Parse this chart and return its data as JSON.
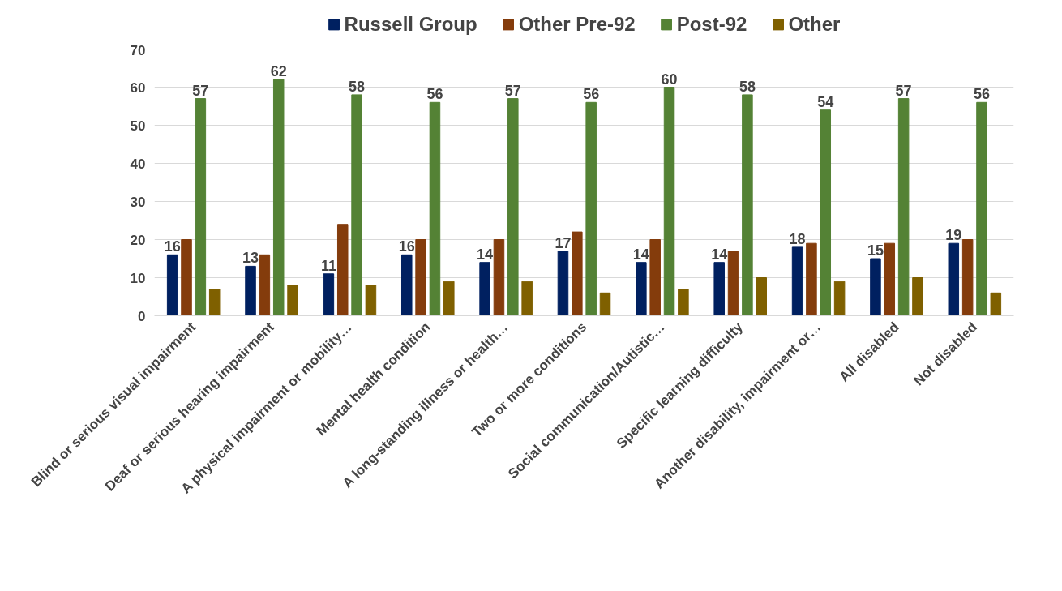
{
  "chart_data": {
    "type": "bar",
    "categories": [
      "Blind or serious visual impairment",
      "Deaf or serious hearing impairment",
      "A physical impairment or mobility…",
      "Mental health condition",
      "A long-standing illness or health…",
      "Two or more conditions",
      "Social communication/Autistic…",
      "Specific learning difficulty",
      "Another disability, impairment or…",
      "All disabled",
      "Not disabled"
    ],
    "series": [
      {
        "name": "Russell Group",
        "color": "#002060",
        "values": [
          16,
          13,
          11,
          16,
          14,
          17,
          14,
          14,
          18,
          15,
          19
        ],
        "value_labels": [
          "16",
          "13",
          "11",
          "16",
          "14",
          "17",
          "14",
          "14",
          "18",
          "15",
          "19"
        ]
      },
      {
        "name": "Other Pre-92",
        "color": "#843c0c",
        "values": [
          20,
          16,
          24,
          20,
          20,
          22,
          20,
          17,
          19,
          19,
          20
        ]
      },
      {
        "name": "Post-92",
        "color": "#548235",
        "values": [
          57,
          62,
          58,
          56,
          57,
          56,
          60,
          58,
          54,
          57,
          56
        ],
        "value_labels": [
          "57",
          "62",
          "58",
          "56",
          "57",
          "56",
          "60",
          "58",
          "54",
          "57",
          "56"
        ]
      },
      {
        "name": "Other",
        "color": "#7f6000",
        "values": [
          7,
          8,
          8,
          9,
          9,
          6,
          7,
          10,
          9,
          10,
          6
        ]
      }
    ],
    "ylim": [
      0,
      70
    ],
    "yticks": [
      0,
      10,
      20,
      30,
      40,
      50,
      60,
      70
    ],
    "grid": "y",
    "legend": "top"
  }
}
